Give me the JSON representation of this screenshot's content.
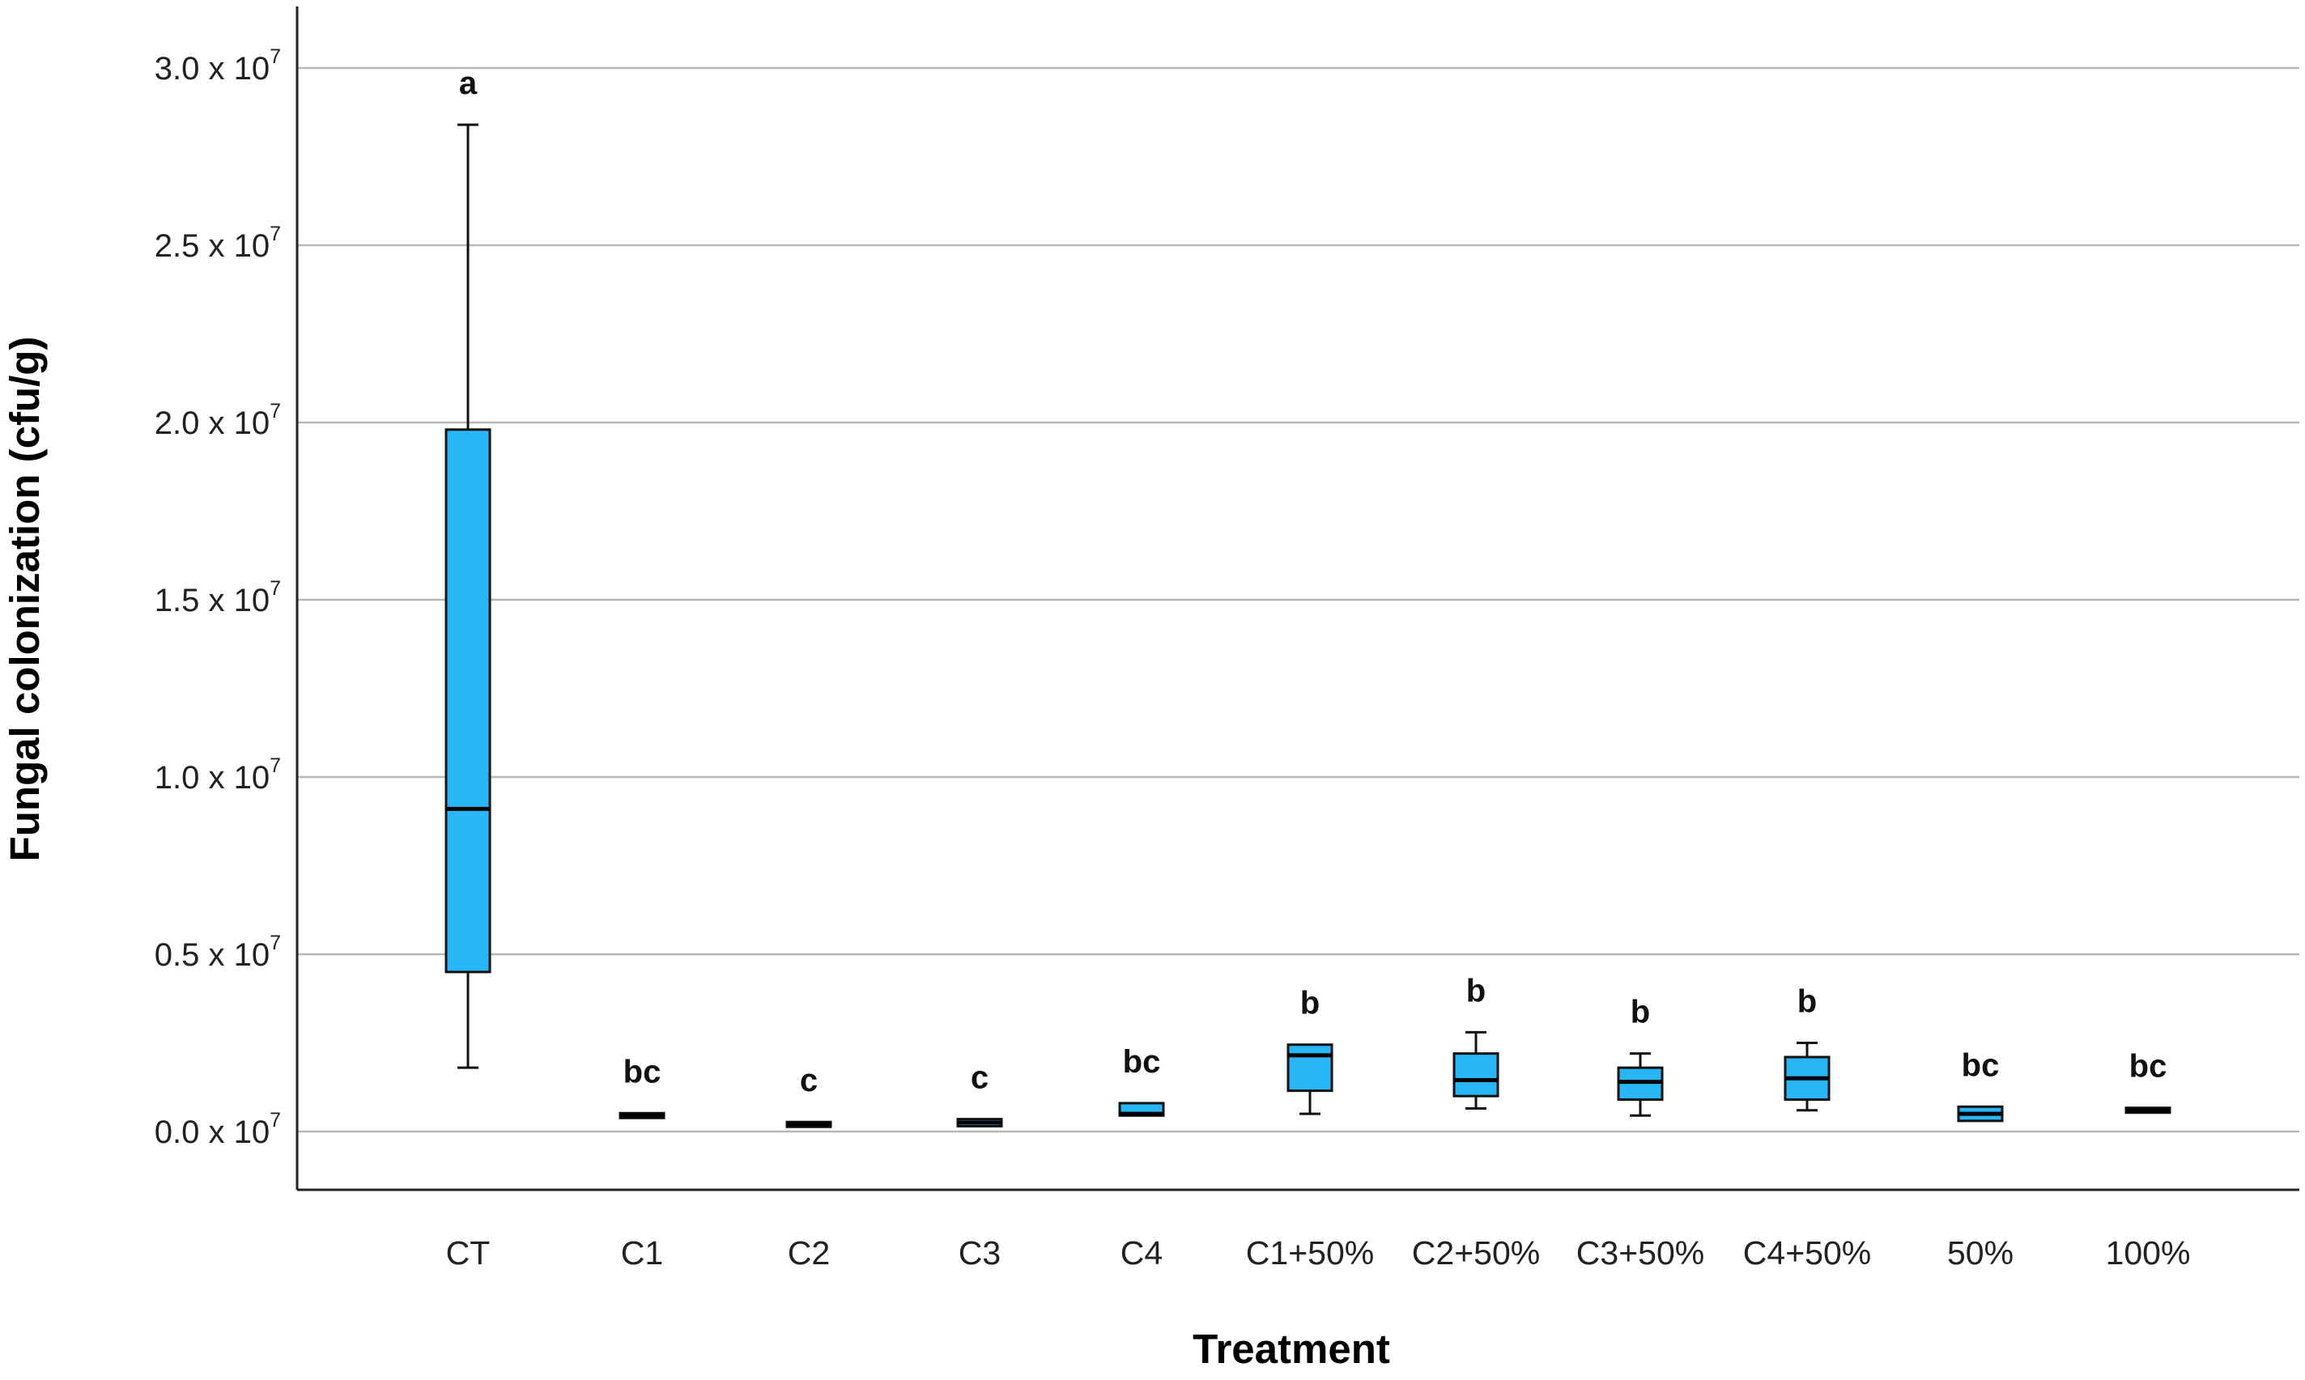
{
  "chart_data": {
    "type": "boxplot",
    "xlabel": "Treatment",
    "ylabel": "Fungal colonization (cfu/g)",
    "ylim": [
      -0.17,
      3.17
    ],
    "y_ticks": [
      {
        "value": 0.0,
        "mantissa": "0.0",
        "base": " x 10",
        "exp": "7"
      },
      {
        "value": 0.5,
        "mantissa": "0.5",
        "base": " x 10",
        "exp": "7"
      },
      {
        "value": 1.0,
        "mantissa": "1.0",
        "base": " x 10",
        "exp": "7"
      },
      {
        "value": 1.5,
        "mantissa": "1.5",
        "base": " x 10",
        "exp": "7"
      },
      {
        "value": 2.0,
        "mantissa": "2.0",
        "base": " x 10",
        "exp": "7"
      },
      {
        "value": 2.5,
        "mantissa": "2.5",
        "base": " x 10",
        "exp": "7"
      },
      {
        "value": 3.0,
        "mantissa": "3.0",
        "base": " x 10",
        "exp": "7"
      }
    ],
    "y_unit_note": "values in units of 10^7 cfu/g",
    "grid": "horizontal",
    "box_color": "#29b6f6",
    "categories": [
      "CT",
      "C1",
      "C2",
      "C3",
      "C4",
      "C1+50%",
      "C2+50%",
      "C3+50%",
      "C4+50%",
      "50%",
      "100%"
    ],
    "boxes": [
      {
        "category": "CT",
        "whisker_low": 0.18,
        "q1": 0.45,
        "median": 0.91,
        "q3": 1.98,
        "whisker_high": 2.84,
        "letter": "a"
      },
      {
        "category": "C1",
        "whisker_low": 0.04,
        "q1": 0.04,
        "median": 0.045,
        "q3": 0.05,
        "whisker_high": 0.05,
        "letter": "bc"
      },
      {
        "category": "C2",
        "whisker_low": 0.015,
        "q1": 0.015,
        "median": 0.02,
        "q3": 0.025,
        "whisker_high": 0.025,
        "letter": "c"
      },
      {
        "category": "C3",
        "whisker_low": 0.015,
        "q1": 0.015,
        "median": 0.025,
        "q3": 0.035,
        "whisker_high": 0.035,
        "letter": "c"
      },
      {
        "category": "C4",
        "whisker_low": 0.045,
        "q1": 0.045,
        "median": 0.05,
        "q3": 0.08,
        "whisker_high": 0.08,
        "letter": "bc"
      },
      {
        "category": "C1+50%",
        "whisker_low": 0.05,
        "q1": 0.115,
        "median": 0.215,
        "q3": 0.245,
        "whisker_high": 0.245,
        "letter": "b"
      },
      {
        "category": "C2+50%",
        "whisker_low": 0.065,
        "q1": 0.1,
        "median": 0.145,
        "q3": 0.22,
        "whisker_high": 0.28,
        "letter": "b"
      },
      {
        "category": "C3+50%",
        "whisker_low": 0.045,
        "q1": 0.09,
        "median": 0.14,
        "q3": 0.18,
        "whisker_high": 0.22,
        "letter": "b"
      },
      {
        "category": "C4+50%",
        "whisker_low": 0.06,
        "q1": 0.09,
        "median": 0.15,
        "q3": 0.21,
        "whisker_high": 0.25,
        "letter": "b"
      },
      {
        "category": "50%",
        "whisker_low": 0.03,
        "q1": 0.03,
        "median": 0.05,
        "q3": 0.07,
        "whisker_high": 0.07,
        "letter": "bc"
      },
      {
        "category": "100%",
        "whisker_low": 0.055,
        "q1": 0.055,
        "median": 0.06,
        "q3": 0.065,
        "whisker_high": 0.065,
        "letter": "bc"
      }
    ]
  }
}
